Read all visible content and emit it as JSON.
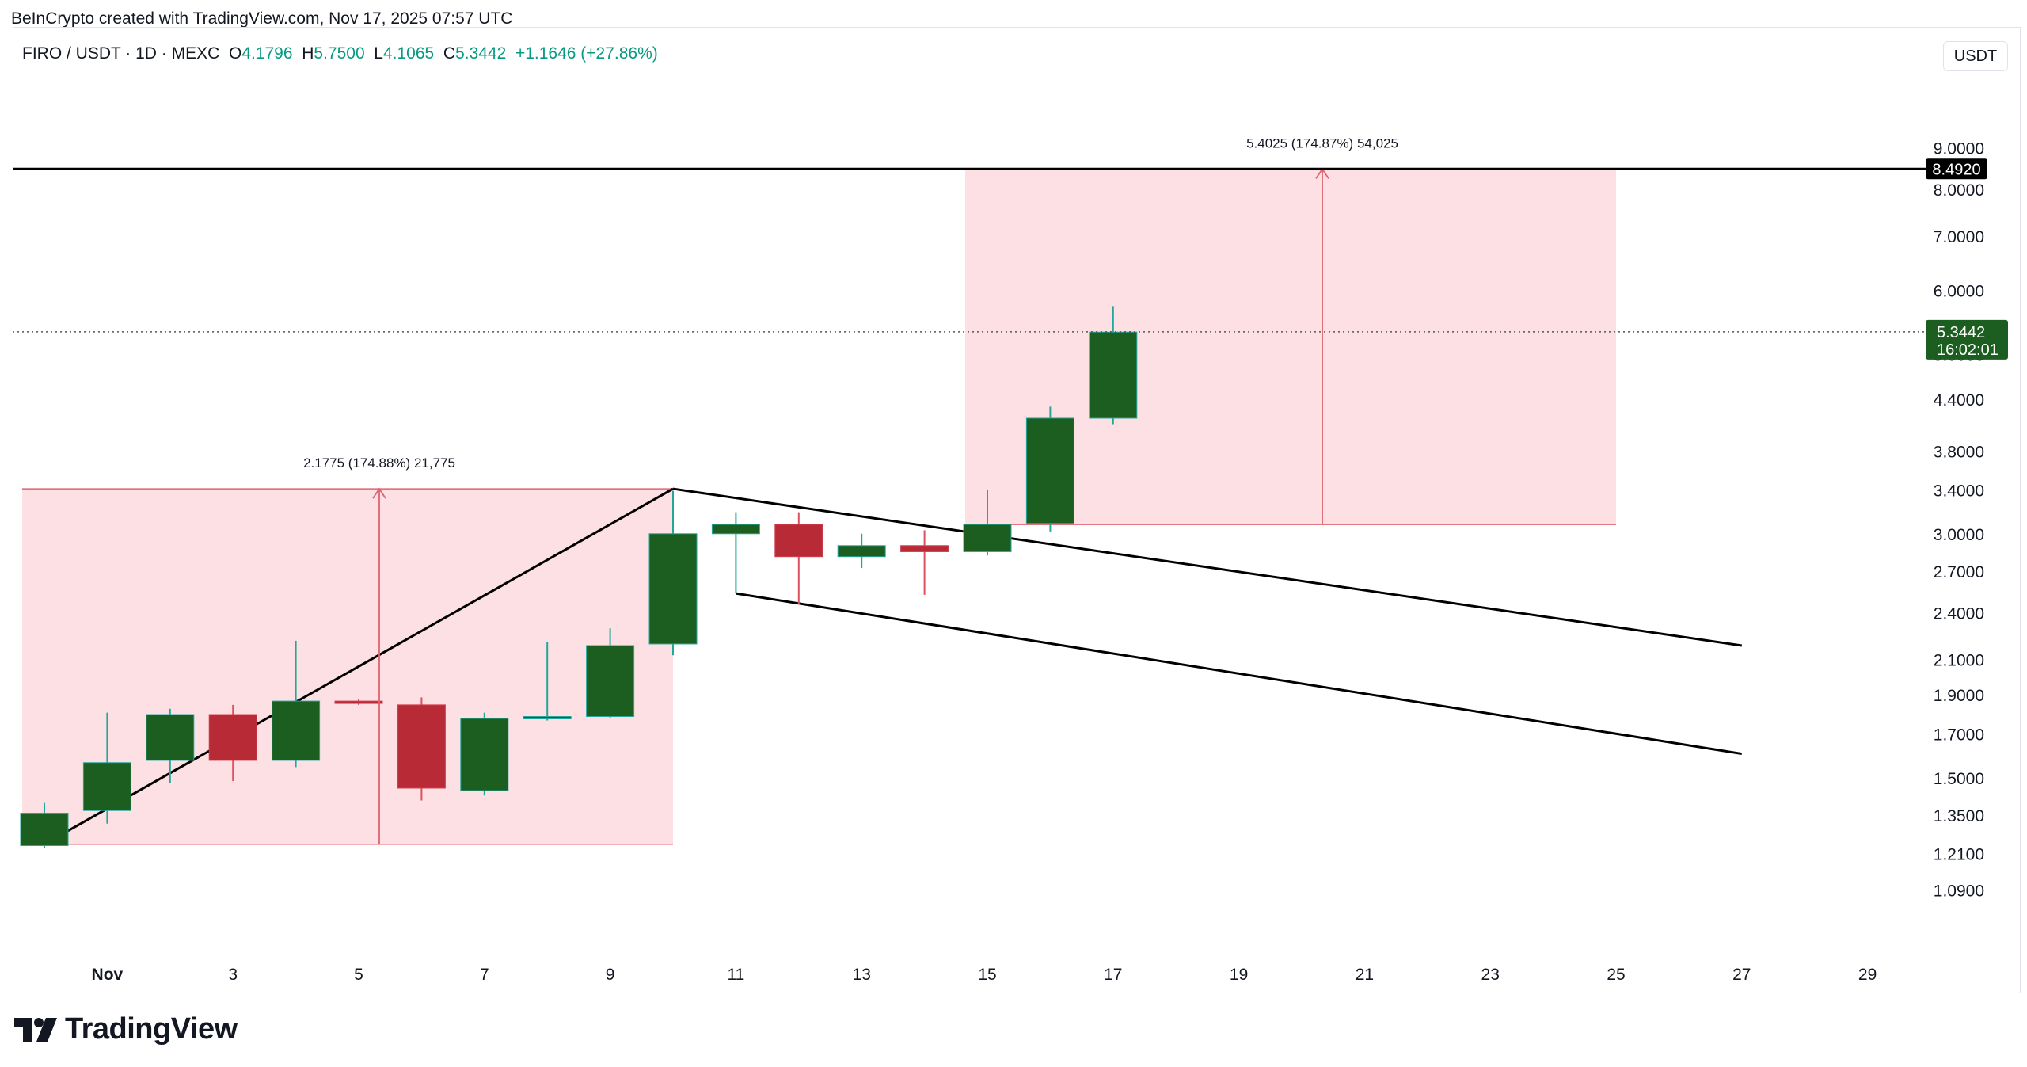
{
  "header": {
    "credit": "BeInCrypto created with TradingView.com, Nov 17, 2025 07:57 UTC"
  },
  "legend": {
    "symbol": "FIRO / USDT · 1D · MEXC",
    "o_label": "O",
    "o_value": "4.1796",
    "h_label": "H",
    "h_value": "5.7500",
    "l_label": "L",
    "l_value": "4.1065",
    "c_label": "C",
    "c_value": "5.3442",
    "change": "+1.1646 (+27.86%)"
  },
  "currency_button": "USDT",
  "branding": {
    "name": "TradingView"
  },
  "colors": {
    "up": "#1b5e20",
    "down": "#b82a36",
    "zone": "#fde0e3",
    "zone_line": "#e0626e",
    "badge_green": "#1b5e20",
    "badge_black": "#000000"
  },
  "chart_data": {
    "type": "candlestick",
    "x_axis_labels": [
      "Nov",
      "3",
      "5",
      "7",
      "9",
      "11",
      "13",
      "15",
      "17",
      "19",
      "21",
      "23",
      "25",
      "27",
      "29"
    ],
    "x_axis_days": [
      1,
      3,
      5,
      7,
      9,
      11,
      13,
      15,
      17,
      19,
      21,
      23,
      25,
      27,
      29
    ],
    "y_scale": "log",
    "y_ticks": [
      "9.0000",
      "8.0000",
      "7.0000",
      "6.0000",
      "5.0000",
      "4.4000",
      "3.8000",
      "3.4000",
      "3.0000",
      "2.7000",
      "2.4000",
      "2.1000",
      "1.9000",
      "1.7000",
      "1.5000",
      "1.3500",
      "1.2100",
      "1.0900"
    ],
    "y_range": [
      1.0,
      9.3
    ],
    "candles": [
      {
        "day": 0,
        "o": 1.24,
        "h": 1.4,
        "l": 1.23,
        "c": 1.36
      },
      {
        "day": 1,
        "o": 1.37,
        "h": 1.81,
        "l": 1.32,
        "c": 1.57
      },
      {
        "day": 2,
        "o": 1.58,
        "h": 1.83,
        "l": 1.48,
        "c": 1.8
      },
      {
        "day": 3,
        "o": 1.8,
        "h": 1.85,
        "l": 1.49,
        "c": 1.58
      },
      {
        "day": 4,
        "o": 1.58,
        "h": 2.22,
        "l": 1.55,
        "c": 1.87
      },
      {
        "day": 5,
        "o": 1.87,
        "h": 1.88,
        "l": 1.85,
        "c": 1.86
      },
      {
        "day": 6,
        "o": 1.85,
        "h": 1.89,
        "l": 1.41,
        "c": 1.46
      },
      {
        "day": 7,
        "o": 1.45,
        "h": 1.81,
        "l": 1.43,
        "c": 1.78
      },
      {
        "day": 8,
        "o": 1.78,
        "h": 2.21,
        "l": 1.77,
        "c": 1.79
      },
      {
        "day": 9,
        "o": 1.79,
        "h": 2.3,
        "l": 1.78,
        "c": 2.19
      },
      {
        "day": 10,
        "o": 2.2,
        "h": 3.4,
        "l": 2.13,
        "c": 3.01
      },
      {
        "day": 11,
        "o": 3.01,
        "h": 3.2,
        "l": 2.54,
        "c": 3.09
      },
      {
        "day": 12,
        "o": 3.09,
        "h": 3.2,
        "l": 2.46,
        "c": 2.82
      },
      {
        "day": 13,
        "o": 2.82,
        "h": 3.01,
        "l": 2.73,
        "c": 2.91
      },
      {
        "day": 14,
        "o": 2.91,
        "h": 3.04,
        "l": 2.53,
        "c": 2.86
      },
      {
        "day": 15,
        "o": 2.86,
        "h": 3.41,
        "l": 2.83,
        "c": 3.09
      },
      {
        "day": 16,
        "o": 3.1,
        "h": 4.32,
        "l": 3.03,
        "c": 4.18
      },
      {
        "day": 17,
        "o": 4.18,
        "h": 5.75,
        "l": 4.11,
        "c": 5.34
      }
    ],
    "last_price": "5.3442",
    "countdown": "16:02:01",
    "resistance_price": "8.4920",
    "measures": [
      {
        "label": "2.1775 (174.88%) 21,775",
        "day_from": 0,
        "day_to": 10,
        "p_from": 1.245,
        "p_to": 3.42,
        "arrow_day": 5
      },
      {
        "label": "5.4025 (174.87%) 54,025",
        "day_from": 15,
        "day_to": 25,
        "p_from": 3.09,
        "p_to": 8.49,
        "arrow_day": 20
      }
    ],
    "trend_lines": [
      {
        "day_from": 0,
        "p_from": 1.245,
        "day_to": 10,
        "p_to": 3.42
      },
      {
        "day_from": 10,
        "p_from": 3.42,
        "day_to": 27,
        "p_to": 2.19
      },
      {
        "day_from": 11,
        "p_from": 2.54,
        "day_to": 27,
        "p_to": 1.61
      }
    ]
  }
}
